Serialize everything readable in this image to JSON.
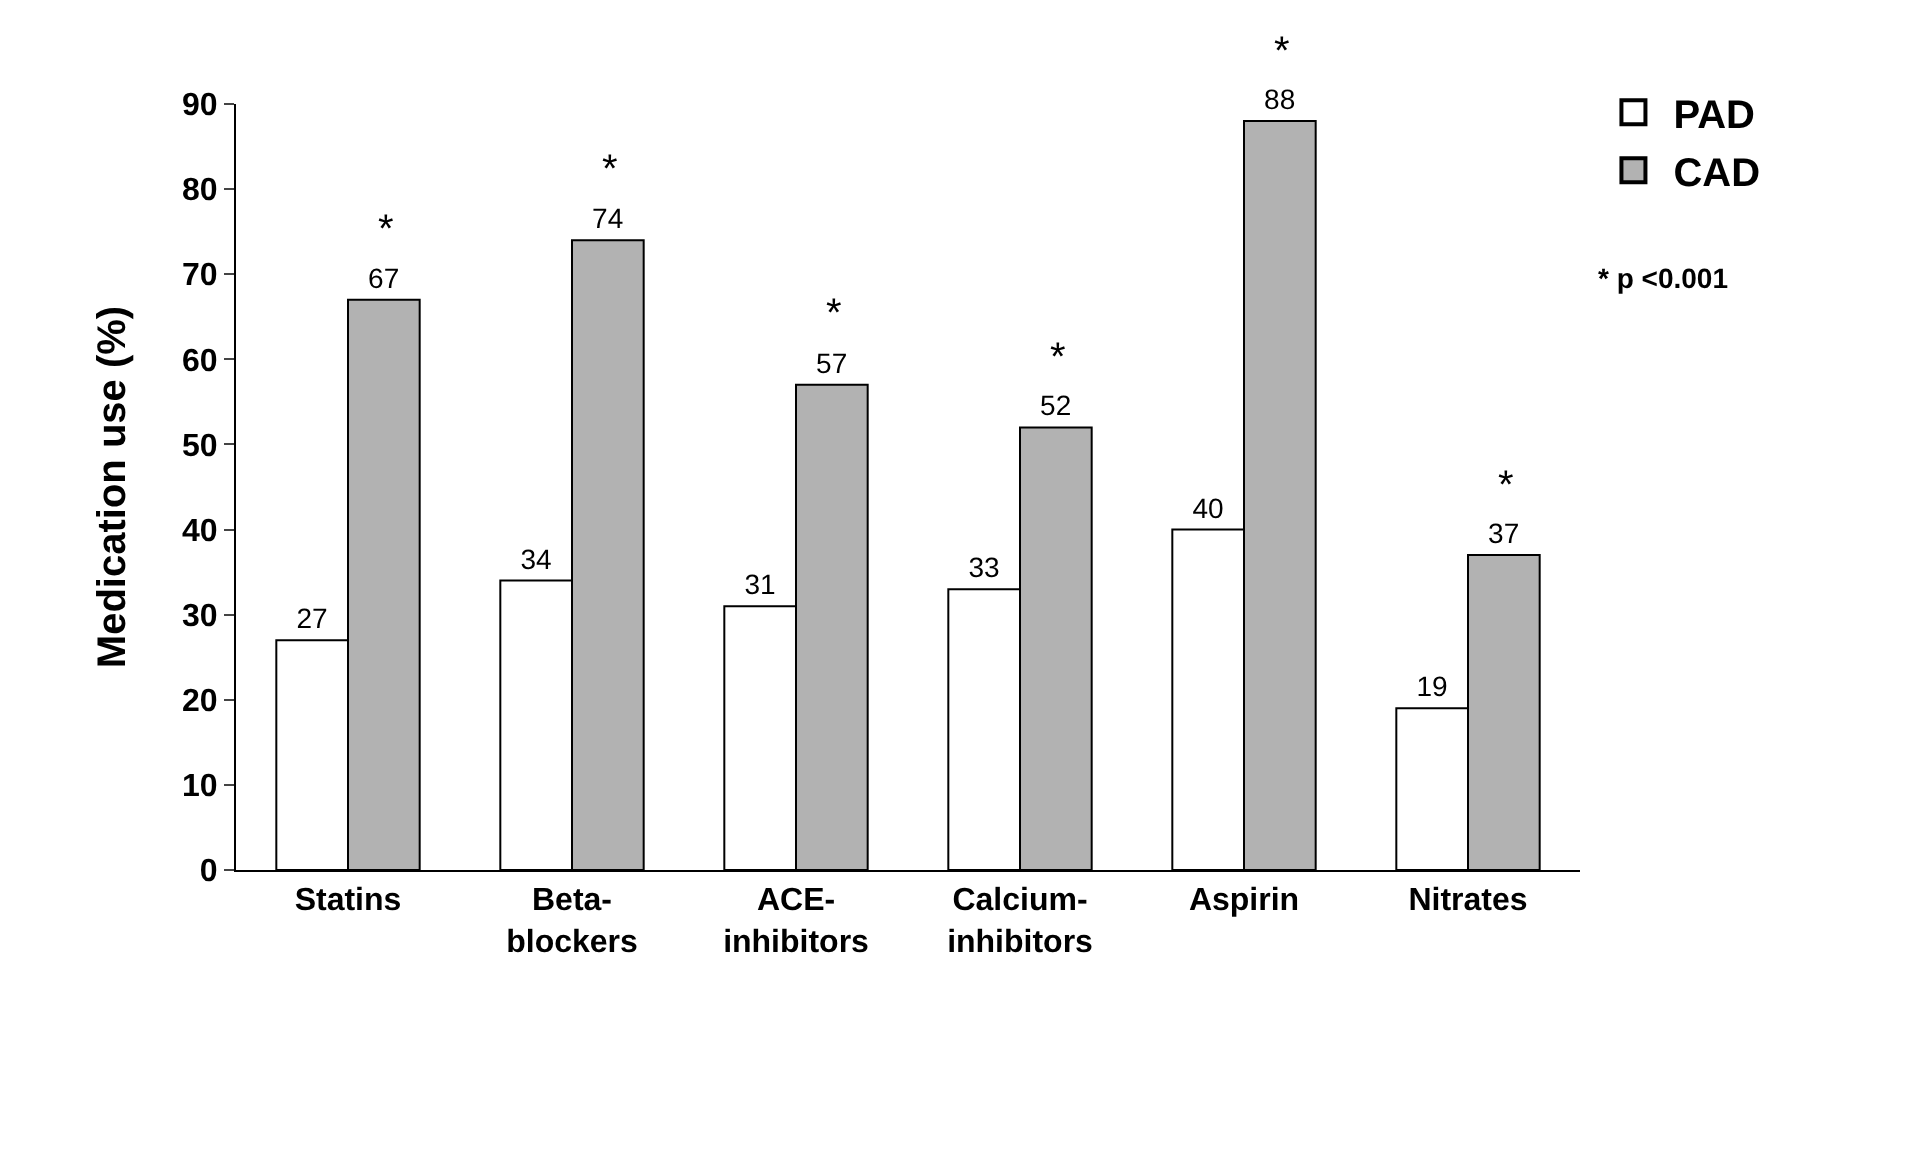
{
  "chart_data": {
    "type": "bar",
    "ylabel": "Medication use (%)",
    "categories": [
      "Statins",
      "Beta-\nblockers",
      "ACE-\ninhibitors",
      "Calcium-\ninhibitors",
      "Aspirin",
      "Nitrates"
    ],
    "series": [
      {
        "name": "PAD",
        "color": "#ffffff",
        "values": [
          27,
          34,
          31,
          33,
          40,
          19
        ]
      },
      {
        "name": "CAD",
        "color": "#b2b2b2",
        "values": [
          67,
          74,
          57,
          52,
          88,
          37
        ]
      }
    ],
    "ylim": [
      0,
      90
    ],
    "yticks": [
      0,
      10,
      20,
      30,
      40,
      50,
      60,
      70,
      80,
      90
    ],
    "data_labels": true,
    "legend": "top right",
    "annotations": [
      "*",
      "*",
      "*",
      "*",
      "*",
      "*",
      "* p <0.001"
    ]
  }
}
